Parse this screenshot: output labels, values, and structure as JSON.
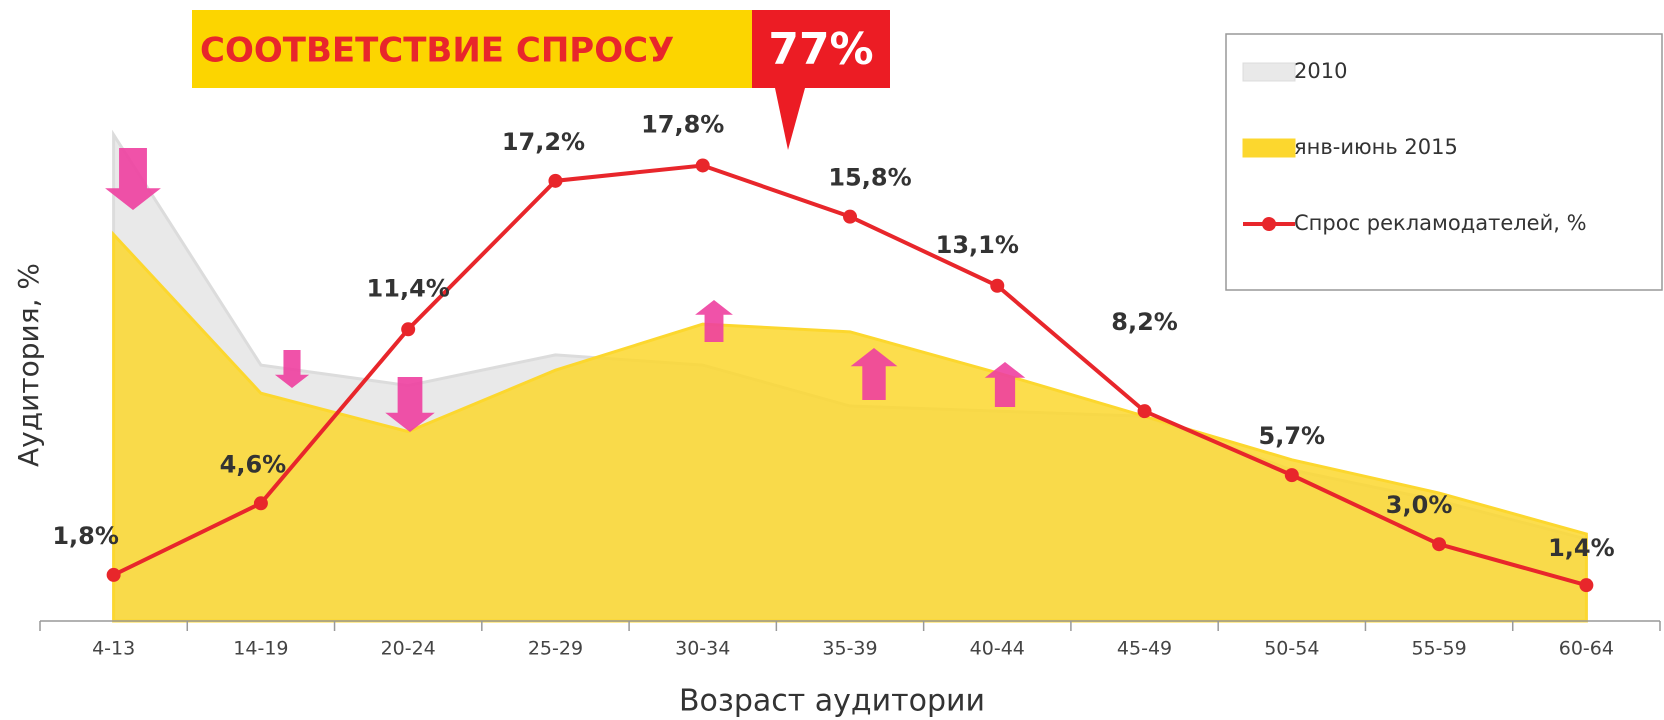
{
  "chart_data": {
    "type": "line",
    "banner": [
      "СООТВЕТСТВИЕ СПРОСУ",
      "77%"
    ],
    "xlabel": "Возраст аудитории",
    "ylabel": "Аудитория, %",
    "categories": [
      "4-13",
      "14-19",
      "20-24",
      "25-29",
      "30-34",
      "35-39",
      "40-44",
      "45-49",
      "50-54",
      "55-59",
      "60-64"
    ],
    "ylim": [
      0,
      22
    ],
    "series": [
      {
        "name": "2010",
        "type": "area",
        "color": "#e9e9e9",
        "values": [
          19.0,
          10.0,
          9.2,
          10.4,
          10.0,
          8.4,
          8.2,
          8.0,
          5.9,
          4.7,
          3.2
        ]
      },
      {
        "name": "янв-июнь 2015",
        "type": "area",
        "color": "#fcd72e",
        "values": [
          15.1,
          8.9,
          7.4,
          9.8,
          11.6,
          11.3,
          9.7,
          8.0,
          6.3,
          5.0,
          3.4
        ]
      },
      {
        "name": "Спрос рекламодателей, %",
        "type": "line",
        "color": "#e8262b",
        "values": [
          1.8,
          4.6,
          11.4,
          17.2,
          17.8,
          15.8,
          13.1,
          8.2,
          5.7,
          3.0,
          1.4
        ],
        "value_labels": [
          "1,8%",
          "4,6%",
          "11,4%",
          "17,2%",
          "17,8%",
          "15,8%",
          "13,1%",
          "8,2%",
          "5,7%",
          "3,0%",
          "1,4%"
        ]
      }
    ],
    "legend": "upper right"
  }
}
